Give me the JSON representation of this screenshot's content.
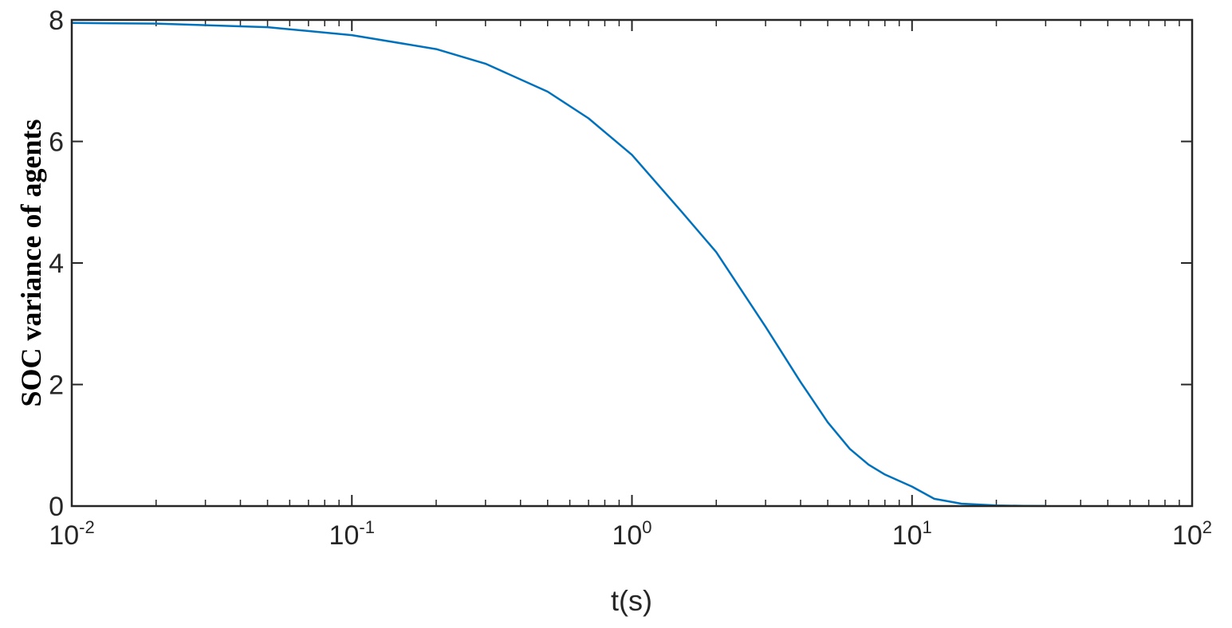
{
  "chart_data": {
    "type": "line",
    "title": "",
    "xlabel": "t(s)",
    "ylabel": "SOC variance of agents",
    "xscale": "log",
    "xlim": [
      0.01,
      100
    ],
    "ylim": [
      0,
      8
    ],
    "grid": false,
    "legend": "none",
    "x_ticks": [
      {
        "base": "10",
        "exp": "-2",
        "value": 0.01
      },
      {
        "base": "10",
        "exp": "-1",
        "value": 0.1
      },
      {
        "base": "10",
        "exp": "0",
        "value": 1
      },
      {
        "base": "10",
        "exp": "1",
        "value": 10
      },
      {
        "base": "10",
        "exp": "2",
        "value": 100
      }
    ],
    "y_ticks": [
      "0",
      "2",
      "4",
      "6",
      "8"
    ],
    "series": [
      {
        "color": "#0072BD",
        "x": [
          0.01,
          0.02,
          0.05,
          0.1,
          0.2,
          0.3,
          0.5,
          0.7,
          1.0,
          1.5,
          2.0,
          3.0,
          4.0,
          5.0,
          6.0,
          7.0,
          8.0,
          10.0,
          12.0,
          15.0,
          20.0,
          25.0,
          30.0
        ],
        "y": [
          7.95,
          7.94,
          7.88,
          7.75,
          7.52,
          7.28,
          6.82,
          6.38,
          5.78,
          4.85,
          4.18,
          2.95,
          2.04,
          1.38,
          0.94,
          0.68,
          0.52,
          0.32,
          0.12,
          0.04,
          0.01,
          0.003,
          0.001
        ]
      }
    ]
  }
}
